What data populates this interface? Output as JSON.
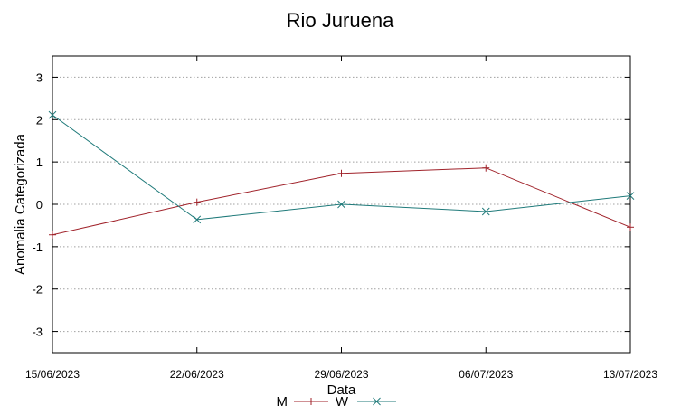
{
  "chart_data": {
    "type": "line",
    "title": "Rio Juruena",
    "xlabel": "Data",
    "ylabel": "Anomalia Categorizada",
    "categories": [
      "15/06/2023",
      "22/06/2023",
      "29/06/2023",
      "06/07/2023",
      "13/07/2023"
    ],
    "ylim": [
      -3.5,
      3.5
    ],
    "yticks": [
      3,
      2,
      1,
      0,
      -1,
      -2,
      -3
    ],
    "grid": true,
    "legend_position": "bottom-center",
    "series": [
      {
        "name": "M",
        "color": "#a0222a",
        "marker": "plus",
        "values": [
          -0.72,
          0.05,
          0.73,
          0.86,
          -0.54
        ]
      },
      {
        "name": "W",
        "color": "#1f7a7a",
        "marker": "cross",
        "values": [
          2.11,
          -0.36,
          0.0,
          -0.17,
          0.2
        ]
      }
    ]
  }
}
